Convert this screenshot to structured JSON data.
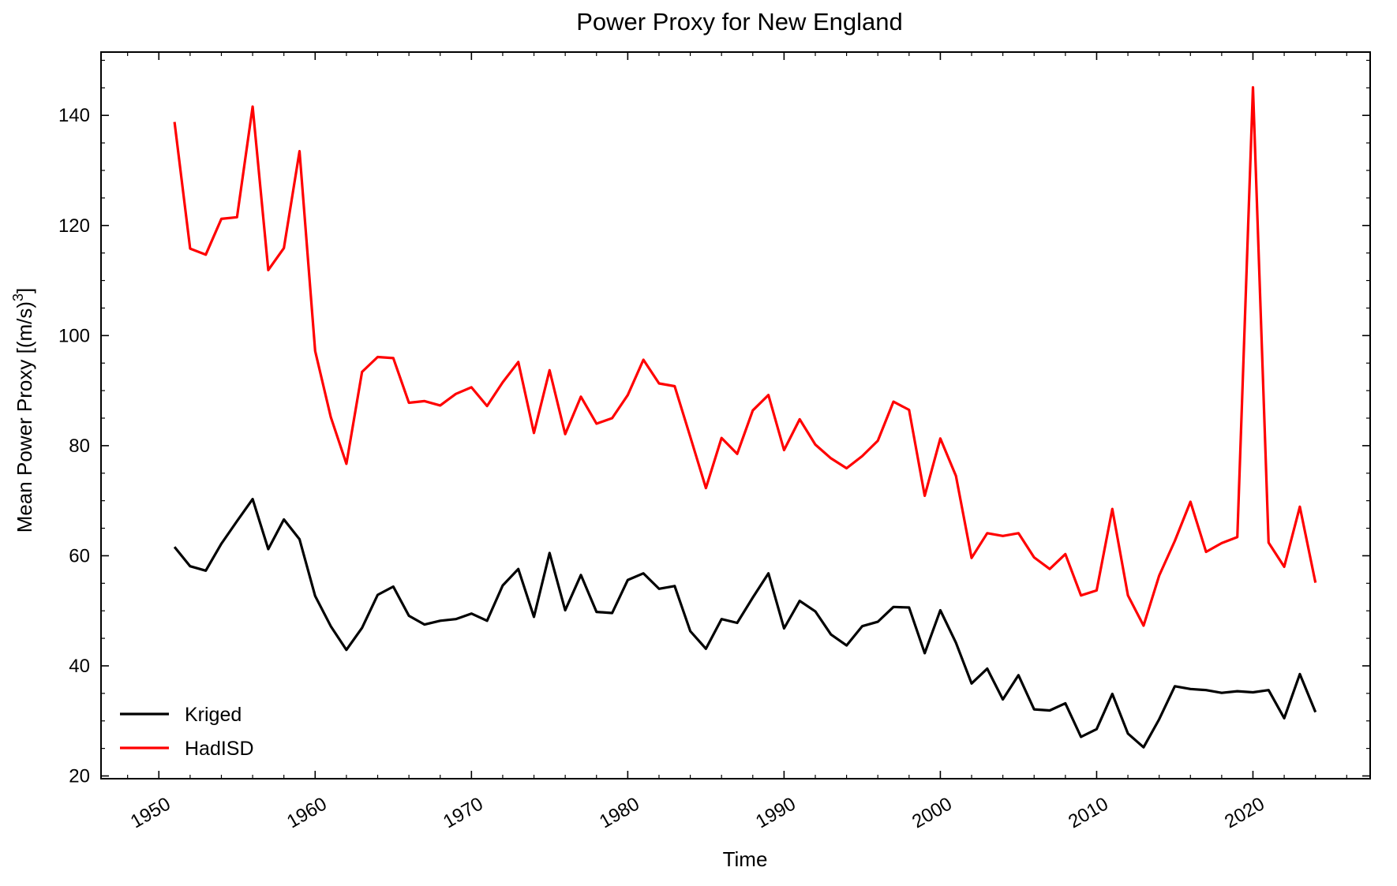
{
  "chart_data": {
    "type": "line",
    "title": "Power Proxy for New England",
    "xlabel": "Time",
    "ylabel": "Mean Power Proxy [(m/s)",
    "ylabel_sup": "3",
    "ylabel_end": "]",
    "xlim": [
      1946.3,
      2027.5
    ],
    "ylim": [
      19.5,
      151.5
    ],
    "x_ticks": [
      1950,
      1960,
      1970,
      1980,
      1990,
      2000,
      2010,
      2020
    ],
    "x_tick_labels": [
      "1950",
      "1960",
      "1970",
      "1980",
      "1990",
      "2000",
      "2010",
      "2020"
    ],
    "y_ticks": [
      20,
      40,
      60,
      80,
      100,
      120,
      140
    ],
    "y_tick_labels": [
      "20",
      "40",
      "60",
      "80",
      "100",
      "120",
      "140"
    ],
    "grid": false,
    "legend_position": "bottom-left",
    "x": [
      1951,
      1952,
      1953,
      1954,
      1955,
      1956,
      1957,
      1958,
      1959,
      1960,
      1961,
      1962,
      1963,
      1964,
      1965,
      1966,
      1967,
      1968,
      1969,
      1970,
      1971,
      1972,
      1973,
      1974,
      1975,
      1976,
      1977,
      1978,
      1979,
      1980,
      1981,
      1982,
      1983,
      1984,
      1985,
      1986,
      1987,
      1988,
      1989,
      1990,
      1991,
      1992,
      1993,
      1994,
      1995,
      1996,
      1997,
      1998,
      1999,
      2000,
      2001,
      2002,
      2003,
      2004,
      2005,
      2006,
      2007,
      2008,
      2009,
      2010,
      2011,
      2012,
      2013,
      2014,
      2015,
      2016,
      2017,
      2018,
      2019,
      2020,
      2021,
      2022,
      2023,
      2024
    ],
    "series": [
      {
        "name": "Kriged",
        "color": "#000000",
        "values": [
          61.6,
          58.1,
          57.3,
          62.2,
          66.3,
          70.3,
          61.2,
          66.6,
          63.0,
          52.7,
          47.2,
          42.9,
          46.9,
          52.9,
          54.4,
          49.1,
          47.5,
          48.2,
          48.5,
          49.5,
          48.2,
          54.6,
          57.6,
          48.9,
          60.5,
          50.1,
          56.5,
          49.8,
          49.6,
          55.6,
          56.8,
          54.0,
          54.5,
          46.3,
          43.1,
          48.5,
          47.8,
          52.4,
          56.8,
          46.8,
          51.8,
          49.9,
          45.7,
          43.7,
          47.2,
          48.0,
          50.7,
          50.6,
          42.3,
          50.1,
          44.2,
          36.8,
          39.5,
          33.9,
          38.3,
          32.1,
          31.9,
          33.2,
          27.1,
          28.5,
          34.9,
          27.7,
          25.2,
          30.3,
          36.3,
          35.8,
          35.6,
          35.1,
          35.4,
          35.2,
          35.6,
          30.5,
          38.5,
          31.6
        ]
      },
      {
        "name": "HadISD",
        "color": "#ff0000",
        "values": [
          138.8,
          115.8,
          114.7,
          121.2,
          121.5,
          141.6,
          111.9,
          115.9,
          133.5,
          97.2,
          85.2,
          76.7,
          93.4,
          96.1,
          95.9,
          87.8,
          88.1,
          87.3,
          89.4,
          90.6,
          87.2,
          91.5,
          95.2,
          82.3,
          93.7,
          82.1,
          88.9,
          84.0,
          85.0,
          89.2,
          95.6,
          91.3,
          90.8,
          81.6,
          72.3,
          81.4,
          78.5,
          86.4,
          89.2,
          79.2,
          84.8,
          80.2,
          77.7,
          75.9,
          78.1,
          80.9,
          88.0,
          86.5,
          70.9,
          81.3,
          74.5,
          59.6,
          64.1,
          63.6,
          64.1,
          59.7,
          57.6,
          60.3,
          52.8,
          53.7,
          68.5,
          52.8,
          47.3,
          56.4,
          62.7,
          69.8,
          60.7,
          62.3,
          63.4,
          145.1,
          62.4,
          58.0,
          68.9,
          55.1
        ]
      }
    ]
  }
}
